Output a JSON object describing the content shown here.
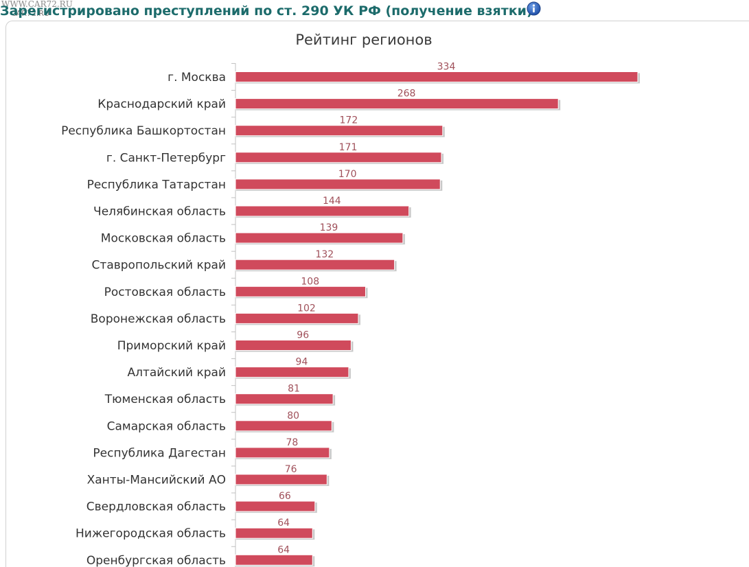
{
  "watermark": {
    "line1": "WWW.CAR72.RU",
    "line2": "CAR72.RU"
  },
  "header": {
    "title": "Зарегистрировано преступлений по ст. 290 УК РФ (получение взятки)",
    "info_icon": "info-icon"
  },
  "colors": {
    "bar": "#d04a5c",
    "bar_shadow": "#c8c8c8",
    "value_label": "#a0505a",
    "title": "#1c6b6b"
  },
  "chart_data": {
    "type": "bar",
    "orientation": "horizontal",
    "title": "Рейтинг регионов",
    "xlabel": "",
    "ylabel": "",
    "xlim": [
      0,
      334
    ],
    "grid": false,
    "categories": [
      "г. Москва",
      "Краснодарский край",
      "Республика Башкортостан",
      "г. Санкт-Петербург",
      "Республика Татарстан",
      "Челябинская область",
      "Московская область",
      "Ставропольский край",
      "Ростовская область",
      "Воронежская область",
      "Приморский край",
      "Алтайский край",
      "Тюменская область",
      "Самарская область",
      "Республика Дагестан",
      "Ханты-Мансийский АО",
      "Свердловская область",
      "Нижегородская область",
      "Оренбургская область"
    ],
    "values": [
      334,
      268,
      172,
      171,
      170,
      144,
      139,
      132,
      108,
      102,
      96,
      94,
      81,
      80,
      78,
      76,
      66,
      64,
      64
    ]
  }
}
